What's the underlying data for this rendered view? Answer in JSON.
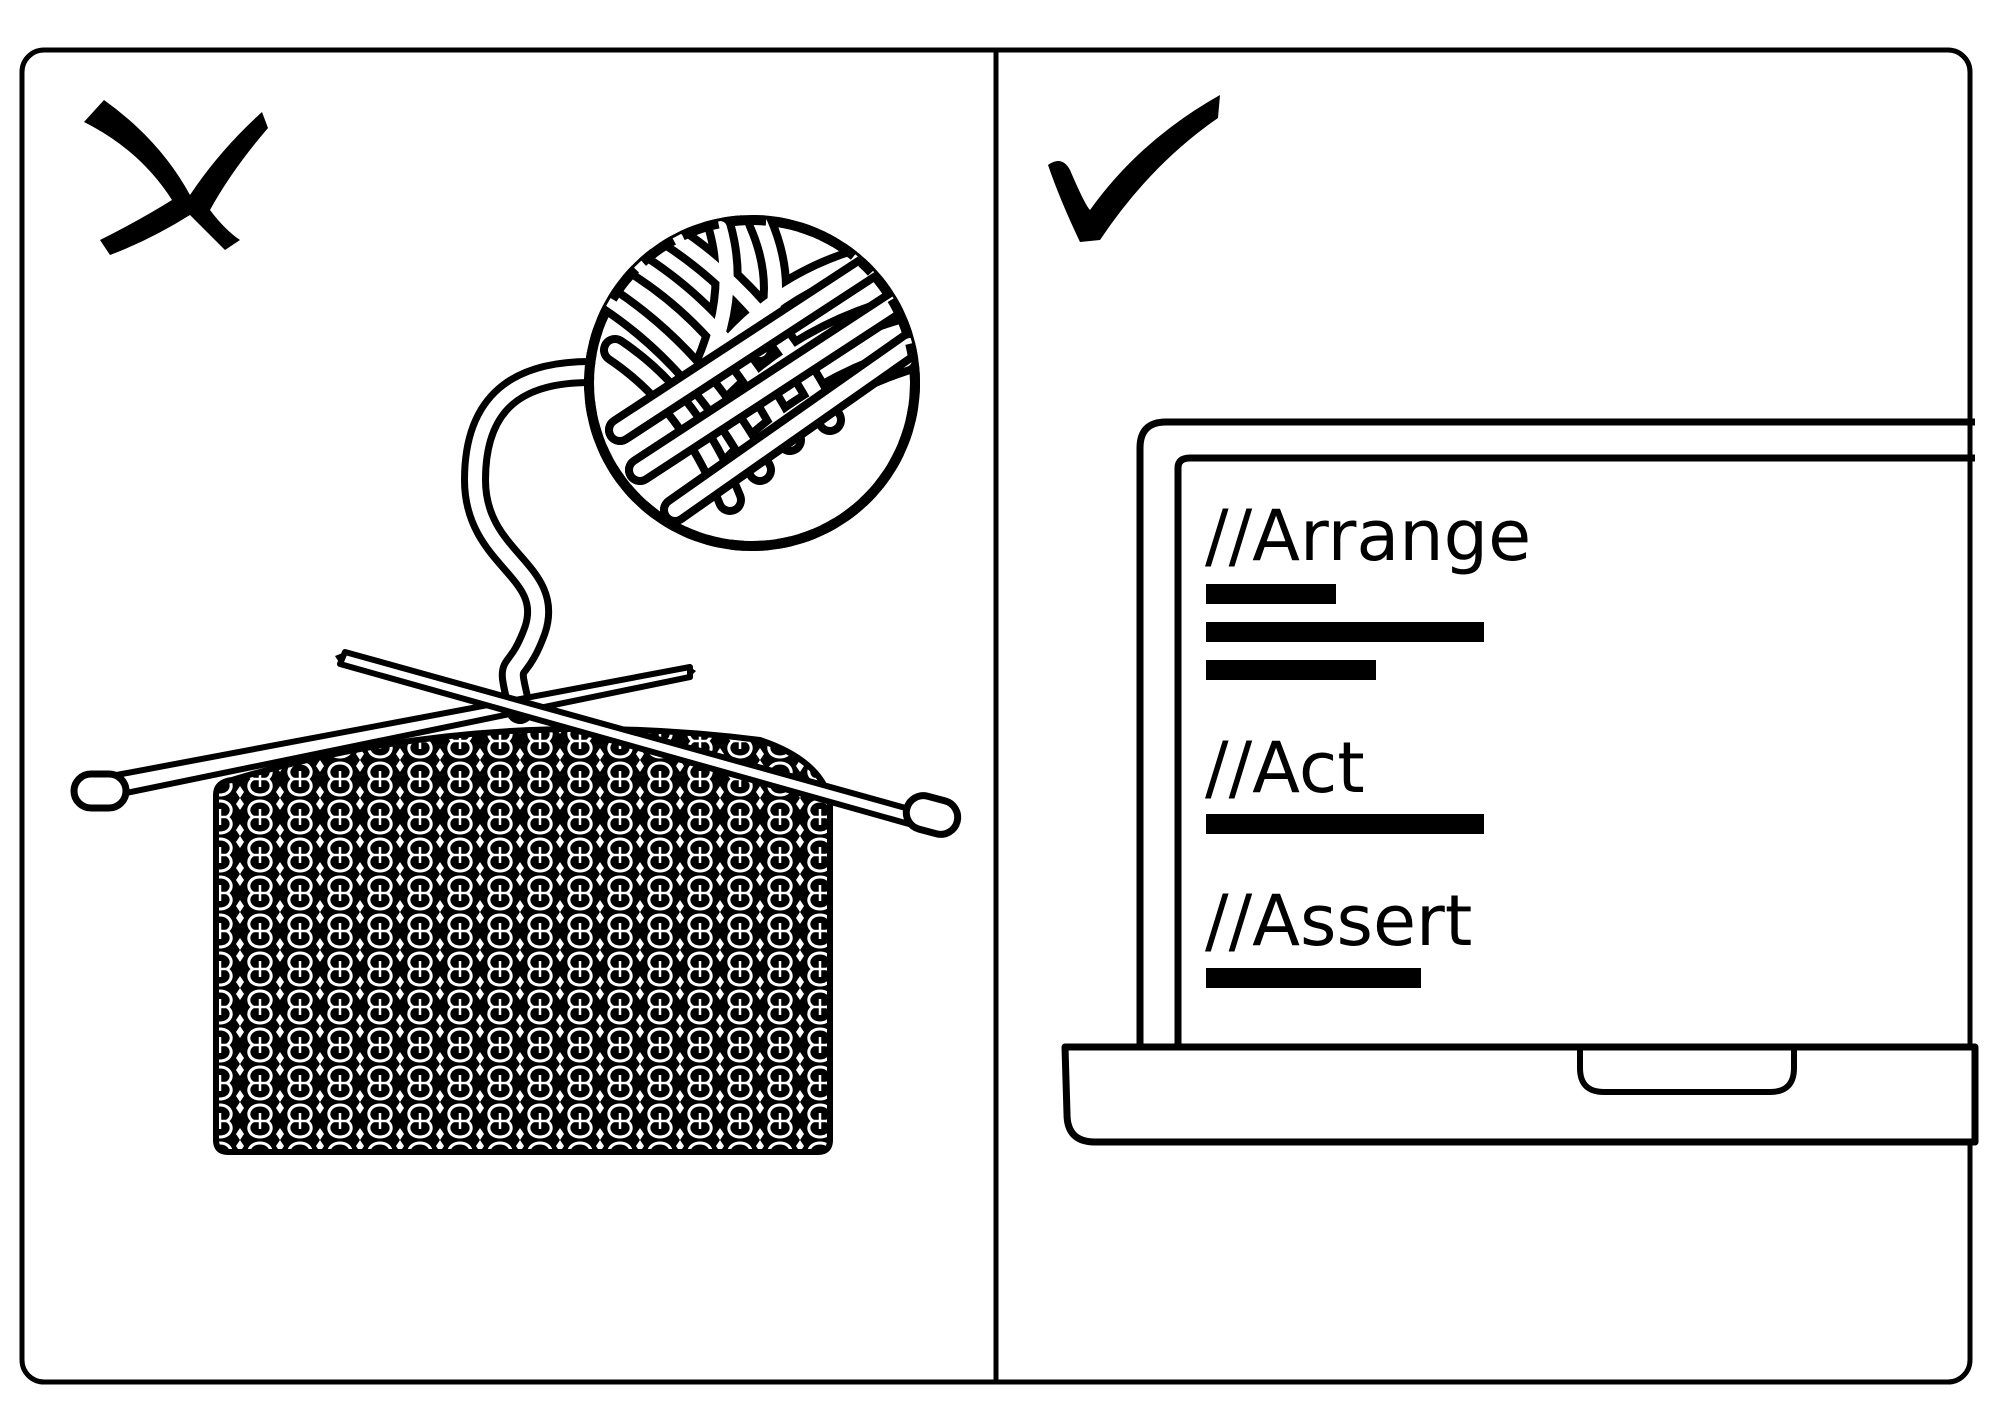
{
  "panels": {
    "left": {
      "verdict_icon": "cross-mark-icon",
      "illustration": "yarn-ball-and-knitting-icon"
    },
    "right": {
      "verdict_icon": "check-mark-icon",
      "illustration": "laptop-icon",
      "code_sections": [
        {
          "comment": "//Arrange",
          "code_lines": 3
        },
        {
          "comment": "//Act",
          "code_lines": 1
        },
        {
          "comment": "//Assert",
          "code_lines": 1
        }
      ]
    }
  },
  "colors": {
    "ink": "#000000",
    "paper": "#ffffff"
  }
}
